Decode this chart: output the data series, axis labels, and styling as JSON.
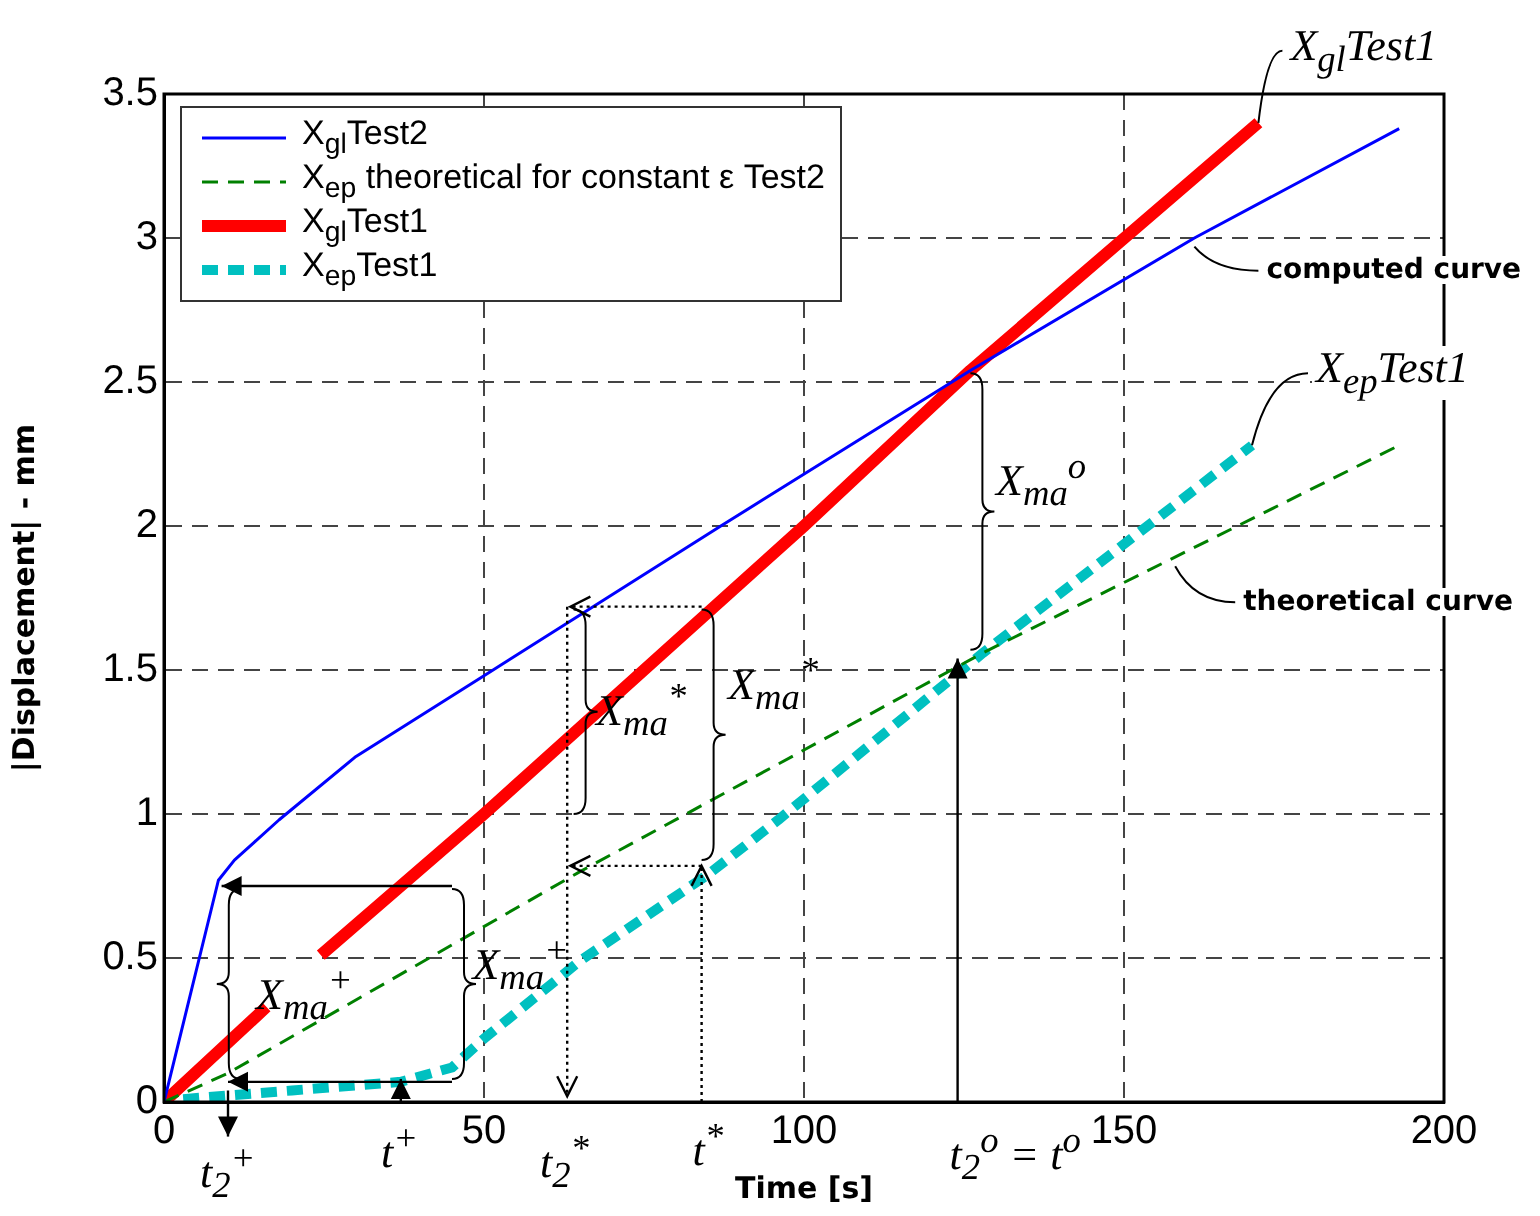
{
  "chart_data": {
    "type": "line",
    "xlabel": "Time [s]",
    "ylabel": "|Displacement| - mm",
    "xlim": [
      0,
      200
    ],
    "ylim": [
      0,
      3.5
    ],
    "xticks": [
      0,
      50,
      100,
      150,
      200
    ],
    "yticks": [
      0,
      0.5,
      1,
      1.5,
      2,
      2.5,
      3,
      3.5
    ],
    "grid": true,
    "legend": "top left",
    "marker": "none",
    "series": [
      {
        "name": "X$_{gl}$Test2",
        "color": "#0000ff",
        "line_style": "solid",
        "x": [
          0,
          8.5,
          11,
          14,
          18,
          30,
          50,
          87,
          126,
          161,
          193
        ],
        "values": [
          0,
          0.77,
          0.84,
          0.9,
          0.98,
          1.2,
          1.48,
          2.0,
          2.54,
          3.0,
          3.38
        ]
      },
      {
        "name": "X$_{ep}$ theoretical for constant ε Test2",
        "color": "#008000",
        "line_style": "dashed",
        "x": [
          0,
          10,
          65,
          128,
          193
        ],
        "values": [
          0,
          0.1,
          0.8,
          1.56,
          2.28
        ]
      },
      {
        "name": "X$_{gl}$Test1",
        "color": "#ff0000",
        "line_style": "solid",
        "x": [
          0,
          16,
          20,
          24.5,
          50,
          100,
          126,
          171
        ],
        "values": [
          0,
          0.33,
          null,
          0.51,
          1.0,
          2.0,
          2.54,
          3.4
        ]
      },
      {
        "name": "X$_{ep}$Test1",
        "color": "#00c0c0",
        "line_style": "dashed",
        "x": [
          3,
          20,
          37,
          45,
          50,
          65,
          85,
          96,
          128,
          170
        ],
        "values": [
          0.01,
          0.04,
          0.07,
          0.12,
          0.22,
          0.49,
          0.79,
          0.98,
          1.56,
          2.28
        ]
      }
    ],
    "annotations": [
      {
        "text": "computed curve",
        "x": 161,
        "y": 2.97
      },
      {
        "text": "theoretical curve",
        "x": 158,
        "y": 1.86
      },
      {
        "text": "X$_{gl}$Test1",
        "x": 171,
        "y": 3.4
      },
      {
        "text": "X$_{ep}$Test1",
        "x": 170,
        "y": 2.28
      },
      "X$_{ma}$$^{o}$",
      "X$_{ma}$$^{*}$",
      "X$_{ma}$$^{*}$",
      "X$_{ma}$$^{+}$",
      {
        "text": "X$_{ma}$$^{+}$",
        "x": 8.5,
        "y": 0.77
      },
      "t$_{2}$$^{+}$",
      "t$^{+}$",
      "t$_{2}$$^{*}$",
      {
        "text": "t$^{*}$",
        "x": 84,
        "y": 0.82
      },
      {
        "text": "t$_{2}$$^{o}$ = t$^{o}$",
        "x": 124,
        "y": 1.54
      }
    ]
  }
}
